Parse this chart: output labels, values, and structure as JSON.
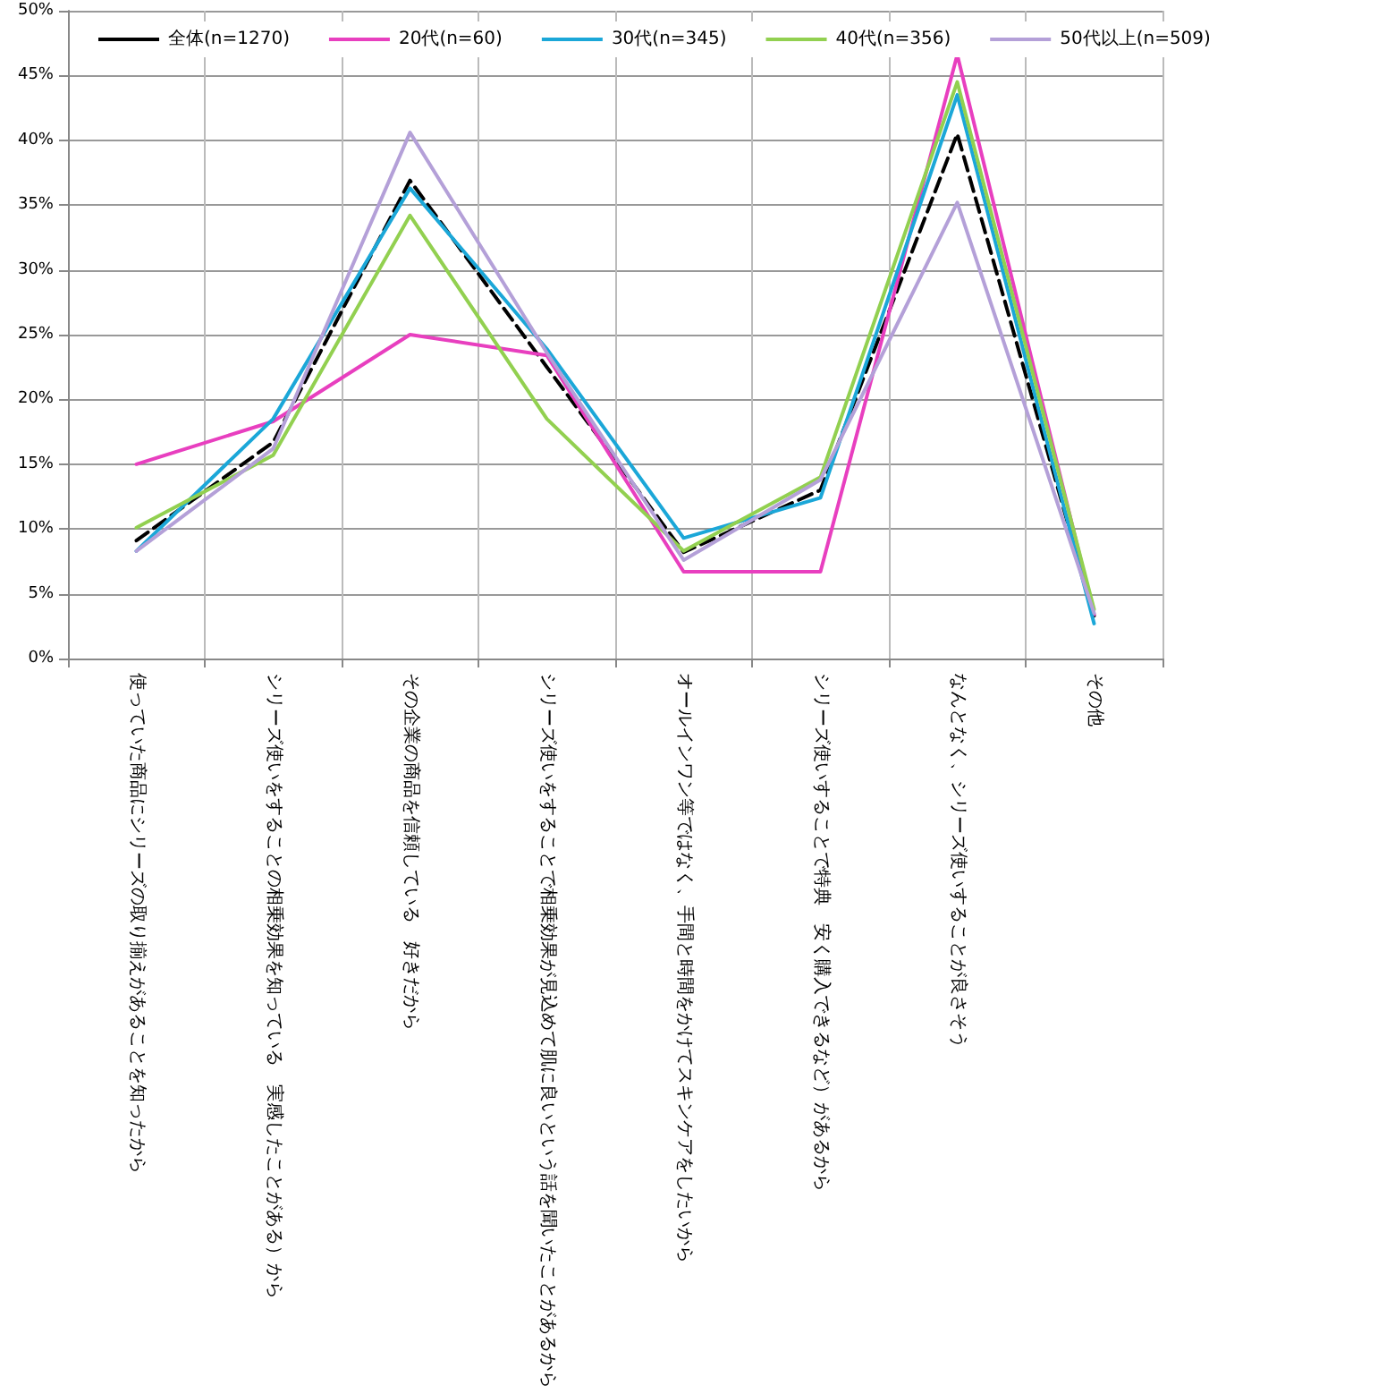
{
  "chart_data": {
    "type": "line",
    "categories": [
      "使っていた商品にシリーズの取り揃えがあることを知ったから",
      "シリーズ使いをすることの相乗効果を知っている　実感したことがある）から",
      "その企業の商品を信頼している　好きだから",
      "シリーズ使いをすることで相乗効果が見込めて肌に良いという話を聞いたことがあるから",
      "オールインワン等ではなく、手間と時間をかけてスキンケアをしたいから",
      "シリーズ使いすることで特典　安く購入できるなど）があるから",
      "なんとなく、シリーズ使いすることが良さそう",
      "その他"
    ],
    "series": [
      {
        "name": "全体(n=1270)",
        "color": "#000000",
        "line_style": "dashed",
        "values": [
          9.1,
          16.7,
          36.9,
          22.5,
          8.2,
          13.0,
          40.5,
          3.3
        ]
      },
      {
        "name": "20代(n=60)",
        "color": "#e83fbf",
        "values": [
          15.0,
          18.3,
          25.0,
          23.4,
          6.7,
          6.7,
          46.6,
          3.4
        ]
      },
      {
        "name": "30代(n=345)",
        "color": "#1ba7d8",
        "values": [
          8.3,
          18.5,
          36.3,
          23.9,
          9.3,
          12.4,
          43.5,
          2.7
        ]
      },
      {
        "name": "40代(n=356)",
        "color": "#92d050",
        "values": [
          10.1,
          15.7,
          34.2,
          18.5,
          8.3,
          14.0,
          44.5,
          3.8
        ]
      },
      {
        "name": "50代以上(n=509)",
        "color": "#b4a0d8",
        "values": [
          8.3,
          16.2,
          40.6,
          23.6,
          7.6,
          13.8,
          35.2,
          3.5
        ]
      }
    ],
    "ylim": [
      0,
      50
    ],
    "yticks": [
      {
        "value": 0,
        "label": "0%"
      },
      {
        "value": 5,
        "label": "5%"
      },
      {
        "value": 10,
        "label": "10%"
      },
      {
        "value": 15,
        "label": "15%"
      },
      {
        "value": 20,
        "label": "20%"
      },
      {
        "value": 25,
        "label": "25%"
      },
      {
        "value": 30,
        "label": "30%"
      },
      {
        "value": 35,
        "label": "35%"
      },
      {
        "value": 40,
        "label": "40%"
      },
      {
        "value": 45,
        "label": "45%"
      },
      {
        "value": 50,
        "label": "50%"
      }
    ],
    "grid": true,
    "legend": "top left",
    "marker": "none",
    "line_style": "solid"
  }
}
